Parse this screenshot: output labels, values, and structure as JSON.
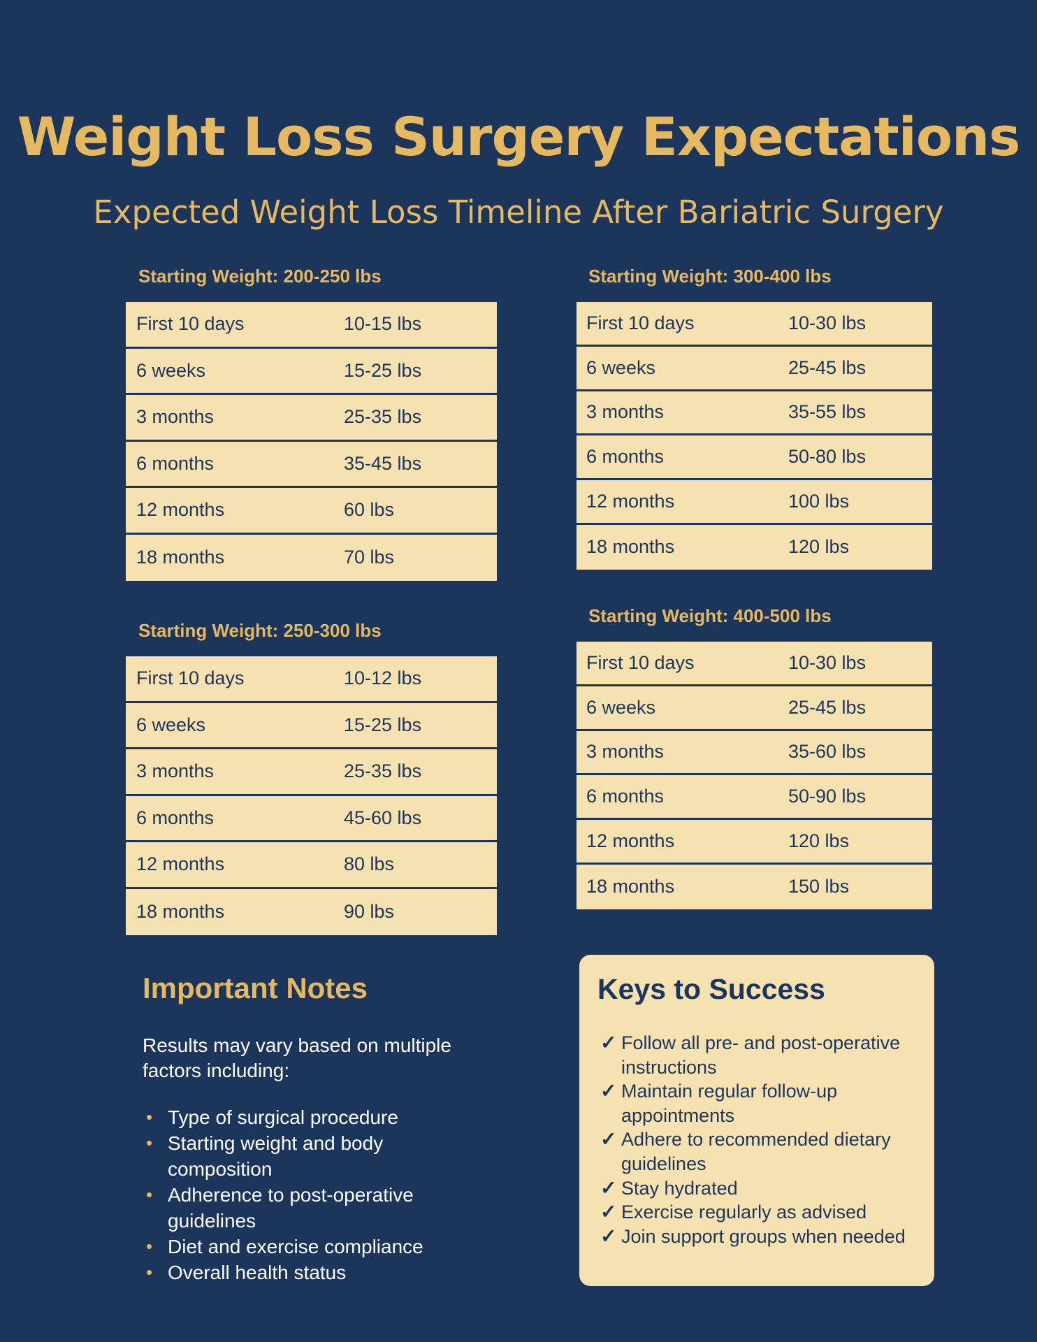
{
  "title": "Weight Loss Surgery Expectations",
  "subtitle": "Expected Weight Loss Timeline After Bariatric Surgery",
  "tables": [
    {
      "heading": "Starting Weight: 200-250 lbs",
      "rows": [
        {
          "period": "First 10 days",
          "amount": "10-15 lbs"
        },
        {
          "period": "6 weeks",
          "amount": "15-25 lbs"
        },
        {
          "period": "3 months",
          "amount": "25-35 lbs"
        },
        {
          "period": "6 months",
          "amount": "35-45 lbs"
        },
        {
          "period": "12 months",
          "amount": "60 lbs"
        },
        {
          "period": "18 months",
          "amount": "70 lbs"
        }
      ]
    },
    {
      "heading": "Starting Weight: 300-400 lbs",
      "rows": [
        {
          "period": "First 10 days",
          "amount": "10-30 lbs"
        },
        {
          "period": "6 weeks",
          "amount": "25-45 lbs"
        },
        {
          "period": "3 months",
          "amount": "35-55 lbs"
        },
        {
          "period": "6 months",
          "amount": "50-80 lbs"
        },
        {
          "period": "12 months",
          "amount": "100 lbs"
        },
        {
          "period": "18 months",
          "amount": "120 lbs"
        }
      ]
    },
    {
      "heading": "Starting Weight: 250-300 lbs",
      "rows": [
        {
          "period": "First 10 days",
          "amount": "10-12 lbs"
        },
        {
          "period": "6 weeks",
          "amount": "15-25 lbs"
        },
        {
          "period": "3 months",
          "amount": "25-35 lbs"
        },
        {
          "period": "6 months",
          "amount": "45-60 lbs"
        },
        {
          "period": "12 months",
          "amount": "80 lbs"
        },
        {
          "period": "18 months",
          "amount": "90 lbs"
        }
      ]
    },
    {
      "heading": "Starting Weight: 400-500 lbs",
      "rows": [
        {
          "period": "First 10 days",
          "amount": "10-30 lbs"
        },
        {
          "period": "6 weeks",
          "amount": "25-45 lbs"
        },
        {
          "period": "3 months",
          "amount": "35-60 lbs"
        },
        {
          "period": "6 months",
          "amount": "50-90 lbs"
        },
        {
          "period": "12 months",
          "amount": "120 lbs"
        },
        {
          "period": "18 months",
          "amount": "150 lbs"
        }
      ]
    }
  ],
  "notes": {
    "title": "Important Notes",
    "intro": "Results may vary based on multiple factors including:",
    "bullet_icon": "•",
    "items": [
      "Type of surgical procedure",
      "Starting weight and body composition",
      "Adherence to post-operative guidelines",
      "Diet and exercise compliance",
      "Overall health status"
    ]
  },
  "keys": {
    "title": "Keys to Success",
    "check_icon": "✓",
    "items": [
      "Follow all pre- and post-operative instructions",
      "Maintain regular follow-up appointments",
      "Adhere to recommended dietary guidelines",
      "Stay hydrated",
      "Exercise regularly as advised",
      "Join support groups when needed"
    ]
  }
}
